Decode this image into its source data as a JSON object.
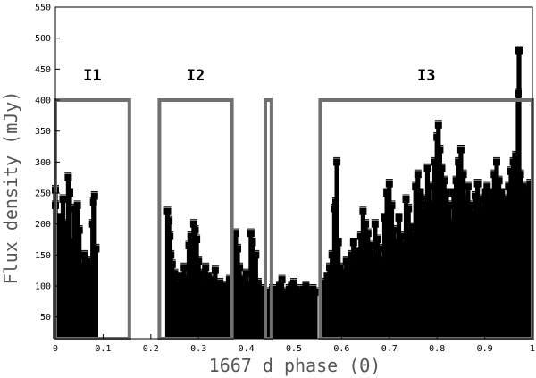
{
  "chart_data": {
    "type": "scatter",
    "title": "",
    "xlabel": "1667 d phase (Θ)",
    "ylabel": "Flux density (mJy)",
    "xlim": [
      0,
      1
    ],
    "ylim": [
      15,
      550
    ],
    "xticks": [
      {
        "value": 0,
        "label": "0"
      },
      {
        "value": 0.1,
        "label": "0.1"
      },
      {
        "value": 0.2,
        "label": "0.2"
      },
      {
        "value": 0.3,
        "label": "0.3"
      },
      {
        "value": 0.4,
        "label": "0.4"
      },
      {
        "value": 0.5,
        "label": "0.5"
      },
      {
        "value": 0.6,
        "label": "0.6"
      },
      {
        "value": 0.7,
        "label": "0.7"
      },
      {
        "value": 0.8,
        "label": "0.8"
      },
      {
        "value": 0.9,
        "label": "0.9"
      },
      {
        "value": 1,
        "label": "1"
      }
    ],
    "yticks": [
      {
        "value": 50,
        "label": "50"
      },
      {
        "value": 100,
        "label": "100"
      },
      {
        "value": 150,
        "label": "150"
      },
      {
        "value": 200,
        "label": "200"
      },
      {
        "value": 250,
        "label": "250"
      },
      {
        "value": 300,
        "label": "300"
      },
      {
        "value": 350,
        "label": "350"
      },
      {
        "value": 400,
        "label": "400"
      },
      {
        "value": 450,
        "label": "450"
      },
      {
        "value": 500,
        "label": "500"
      },
      {
        "value": 550,
        "label": "550"
      }
    ],
    "marker_color": "#000000",
    "box_color": "#707070",
    "intervals": [
      {
        "label": "I1",
        "x_start": 0.0,
        "x_end": 0.155,
        "y_top": 400
      },
      {
        "label": "I2",
        "x_start": 0.218,
        "x_end": 0.37,
        "y_top": 400
      },
      {
        "label": "",
        "x_start": 0.44,
        "x_end": 0.453,
        "y_top": 400
      },
      {
        "label": "I3",
        "x_start": 0.555,
        "x_end": 1.0,
        "y_top": 400
      }
    ],
    "points": [
      [
        0.0,
        255
      ],
      [
        0.0,
        230
      ],
      [
        0.003,
        190
      ],
      [
        0.005,
        120
      ],
      [
        0.008,
        210
      ],
      [
        0.01,
        90
      ],
      [
        0.013,
        180
      ],
      [
        0.016,
        240
      ],
      [
        0.02,
        140
      ],
      [
        0.024,
        200
      ],
      [
        0.027,
        275
      ],
      [
        0.03,
        250
      ],
      [
        0.033,
        170
      ],
      [
        0.036,
        110
      ],
      [
        0.04,
        225
      ],
      [
        0.043,
        160
      ],
      [
        0.046,
        230
      ],
      [
        0.05,
        190
      ],
      [
        0.055,
        130
      ],
      [
        0.058,
        100
      ],
      [
        0.06,
        150
      ],
      [
        0.063,
        120
      ],
      [
        0.066,
        140
      ],
      [
        0.07,
        90
      ],
      [
        0.073,
        130
      ],
      [
        0.075,
        80
      ],
      [
        0.078,
        200
      ],
      [
        0.08,
        235
      ],
      [
        0.082,
        245
      ],
      [
        0.085,
        160
      ],
      [
        0.235,
        220
      ],
      [
        0.238,
        205
      ],
      [
        0.24,
        180
      ],
      [
        0.242,
        150
      ],
      [
        0.245,
        135
      ],
      [
        0.25,
        120
      ],
      [
        0.255,
        100
      ],
      [
        0.26,
        115
      ],
      [
        0.265,
        105
      ],
      [
        0.27,
        130
      ],
      [
        0.275,
        110
      ],
      [
        0.28,
        165
      ],
      [
        0.284,
        180
      ],
      [
        0.29,
        200
      ],
      [
        0.293,
        190
      ],
      [
        0.296,
        175
      ],
      [
        0.3,
        140
      ],
      [
        0.305,
        120
      ],
      [
        0.31,
        105
      ],
      [
        0.315,
        130
      ],
      [
        0.32,
        115
      ],
      [
        0.325,
        100
      ],
      [
        0.33,
        110
      ],
      [
        0.335,
        125
      ],
      [
        0.34,
        95
      ],
      [
        0.345,
        105
      ],
      [
        0.35,
        90
      ],
      [
        0.355,
        100
      ],
      [
        0.36,
        95
      ],
      [
        0.365,
        110
      ],
      [
        0.375,
        150
      ],
      [
        0.378,
        185
      ],
      [
        0.382,
        160
      ],
      [
        0.386,
        130
      ],
      [
        0.39,
        110
      ],
      [
        0.395,
        95
      ],
      [
        0.4,
        120
      ],
      [
        0.405,
        100
      ],
      [
        0.41,
        185
      ],
      [
        0.413,
        170
      ],
      [
        0.416,
        130
      ],
      [
        0.42,
        150
      ],
      [
        0.425,
        105
      ],
      [
        0.43,
        95
      ],
      [
        0.435,
        85
      ],
      [
        0.445,
        90
      ],
      [
        0.45,
        85
      ],
      [
        0.455,
        95
      ],
      [
        0.46,
        90
      ],
      [
        0.465,
        85
      ],
      [
        0.47,
        100
      ],
      [
        0.475,
        110
      ],
      [
        0.48,
        80
      ],
      [
        0.485,
        90
      ],
      [
        0.49,
        95
      ],
      [
        0.495,
        100
      ],
      [
        0.5,
        105
      ],
      [
        0.505,
        95
      ],
      [
        0.51,
        85
      ],
      [
        0.515,
        90
      ],
      [
        0.52,
        95
      ],
      [
        0.525,
        100
      ],
      [
        0.53,
        90
      ],
      [
        0.535,
        85
      ],
      [
        0.54,
        95
      ],
      [
        0.545,
        90
      ],
      [
        0.56,
        95
      ],
      [
        0.565,
        105
      ],
      [
        0.57,
        115
      ],
      [
        0.575,
        130
      ],
      [
        0.58,
        150
      ],
      [
        0.585,
        225
      ],
      [
        0.588,
        235
      ],
      [
        0.59,
        300
      ],
      [
        0.593,
        170
      ],
      [
        0.597,
        130
      ],
      [
        0.6,
        120
      ],
      [
        0.605,
        110
      ],
      [
        0.61,
        140
      ],
      [
        0.615,
        125
      ],
      [
        0.62,
        150
      ],
      [
        0.625,
        170
      ],
      [
        0.63,
        140
      ],
      [
        0.635,
        155
      ],
      [
        0.64,
        180
      ],
      [
        0.645,
        220
      ],
      [
        0.65,
        200
      ],
      [
        0.655,
        185
      ],
      [
        0.66,
        165
      ],
      [
        0.665,
        145
      ],
      [
        0.67,
        200
      ],
      [
        0.675,
        175
      ],
      [
        0.68,
        160
      ],
      [
        0.685,
        140
      ],
      [
        0.69,
        210
      ],
      [
        0.695,
        250
      ],
      [
        0.7,
        265
      ],
      [
        0.705,
        230
      ],
      [
        0.71,
        190
      ],
      [
        0.715,
        170
      ],
      [
        0.72,
        210
      ],
      [
        0.725,
        180
      ],
      [
        0.73,
        165
      ],
      [
        0.735,
        240
      ],
      [
        0.74,
        225
      ],
      [
        0.745,
        195
      ],
      [
        0.75,
        180
      ],
      [
        0.755,
        260
      ],
      [
        0.76,
        280
      ],
      [
        0.765,
        250
      ],
      [
        0.77,
        220
      ],
      [
        0.775,
        240
      ],
      [
        0.78,
        290
      ],
      [
        0.785,
        260
      ],
      [
        0.79,
        230
      ],
      [
        0.795,
        300
      ],
      [
        0.8,
        340
      ],
      [
        0.803,
        360
      ],
      [
        0.806,
        320
      ],
      [
        0.81,
        290
      ],
      [
        0.815,
        270
      ],
      [
        0.82,
        250
      ],
      [
        0.825,
        230
      ],
      [
        0.83,
        200
      ],
      [
        0.835,
        250
      ],
      [
        0.84,
        270
      ],
      [
        0.845,
        300
      ],
      [
        0.85,
        320
      ],
      [
        0.855,
        280
      ],
      [
        0.86,
        240
      ],
      [
        0.865,
        260
      ],
      [
        0.87,
        230
      ],
      [
        0.875,
        215
      ],
      [
        0.88,
        245
      ],
      [
        0.885,
        265
      ],
      [
        0.89,
        240
      ],
      [
        0.895,
        220
      ],
      [
        0.9,
        250
      ],
      [
        0.905,
        260
      ],
      [
        0.91,
        235
      ],
      [
        0.915,
        250
      ],
      [
        0.92,
        280
      ],
      [
        0.925,
        300
      ],
      [
        0.93,
        270
      ],
      [
        0.935,
        250
      ],
      [
        0.94,
        230
      ],
      [
        0.945,
        240
      ],
      [
        0.95,
        260
      ],
      [
        0.955,
        285
      ],
      [
        0.96,
        300
      ],
      [
        0.965,
        310
      ],
      [
        0.97,
        410
      ],
      [
        0.972,
        480
      ],
      [
        0.975,
        280
      ],
      [
        0.98,
        260
      ],
      [
        0.985,
        255
      ],
      [
        0.99,
        250
      ],
      [
        0.995,
        265
      ]
    ]
  }
}
